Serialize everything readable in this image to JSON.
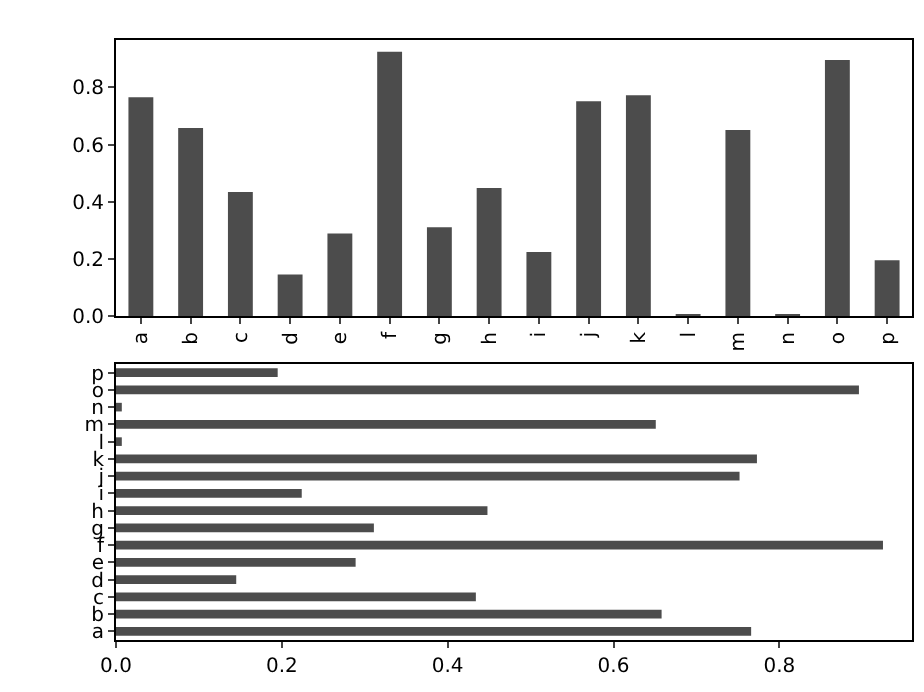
{
  "chart_data": [
    {
      "type": "bar",
      "categories": [
        "a",
        "b",
        "c",
        "d",
        "e",
        "f",
        "g",
        "h",
        "i",
        "j",
        "k",
        "l",
        "m",
        "n",
        "o",
        "p"
      ],
      "values": [
        0.766,
        0.658,
        0.434,
        0.145,
        0.289,
        0.925,
        0.311,
        0.448,
        0.224,
        0.752,
        0.773,
        0.007,
        0.651,
        0.007,
        0.896,
        0.195
      ],
      "color": "#4c4c4c",
      "ylim": [
        0,
        0.966
      ],
      "yticks": [
        {
          "value": 0,
          "label": "0.0"
        },
        {
          "value": 0.2,
          "label": "0.2"
        },
        {
          "value": 0.4,
          "label": "0.4"
        },
        {
          "value": 0.6,
          "label": "0.6"
        },
        {
          "value": 0.8,
          "label": "0.8"
        }
      ]
    },
    {
      "type": "bar",
      "orientation": "horizontal",
      "categories": [
        "p",
        "o",
        "n",
        "m",
        "l",
        "k",
        "j",
        "i",
        "h",
        "g",
        "f",
        "e",
        "d",
        "c",
        "b",
        "a"
      ],
      "values": [
        0.195,
        0.896,
        0.007,
        0.651,
        0.007,
        0.773,
        0.752,
        0.224,
        0.448,
        0.311,
        0.925,
        0.289,
        0.145,
        0.434,
        0.658,
        0.766
      ],
      "color": "#4c4c4c",
      "xlim": [
        0,
        0.96
      ],
      "xticks": [
        {
          "value": 0,
          "label": "0.0"
        },
        {
          "value": 0.2,
          "label": "0.2"
        },
        {
          "value": 0.4,
          "label": "0.4"
        },
        {
          "value": 0.6,
          "label": "0.6"
        },
        {
          "value": 0.8,
          "label": "0.8"
        }
      ]
    }
  ]
}
